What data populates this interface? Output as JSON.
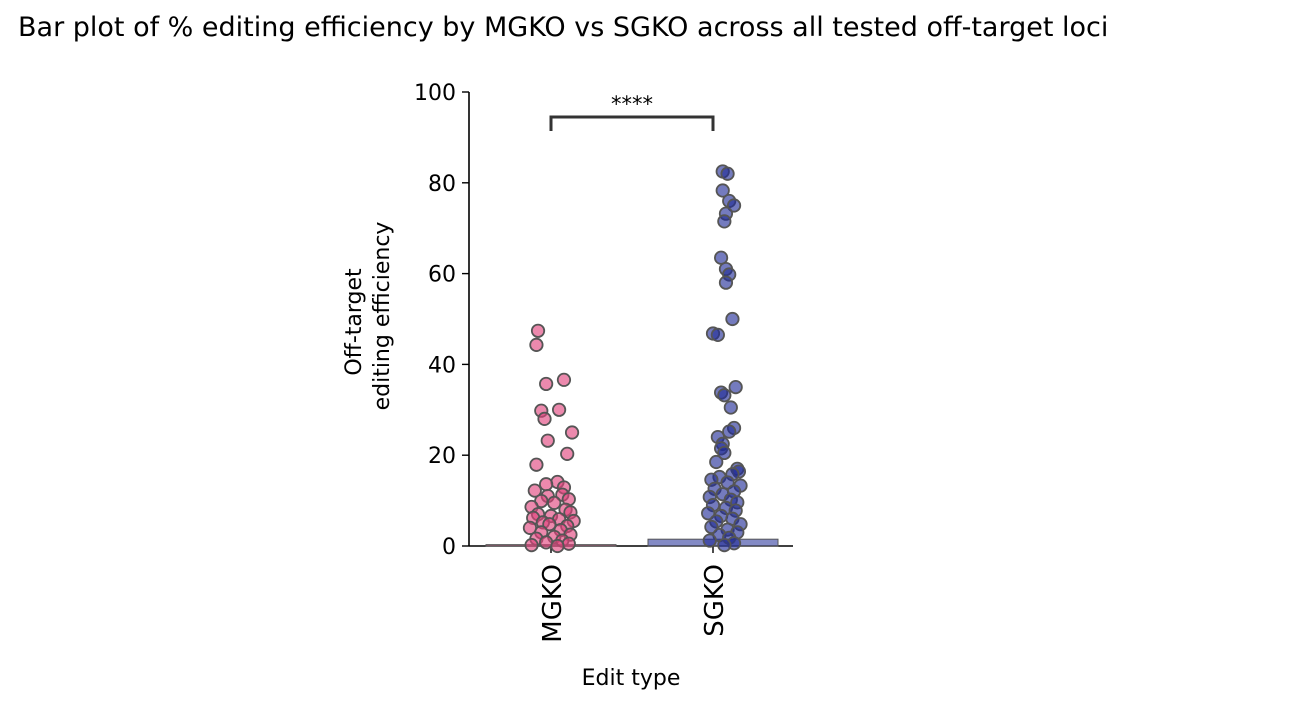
{
  "chart_data": {
    "type": "bar",
    "title": "Bar plot of % editing efficiency by MGKO vs SGKO across all tested off-target loci",
    "xlabel": "Edit type",
    "ylabel_lines": [
      "Off-target",
      "editing efficiency"
    ],
    "ylim": [
      0,
      100
    ],
    "yticks": [
      0,
      20,
      40,
      60,
      80,
      100
    ],
    "categories": [
      "MGKO",
      "SGKO"
    ],
    "bar_values": [
      0.3,
      1.5
    ],
    "colors": {
      "MGKO": "#e0407a",
      "SGKO": "#1e2a96",
      "marker_edge": "#555555",
      "bracket": "#333333"
    },
    "significance": {
      "label": "****",
      "between": [
        "MGKO",
        "SGKO"
      ],
      "y": 94.5
    },
    "points": [
      {
        "category": "MGKO",
        "values": [
          47.4,
          44.3,
          36.6,
          35.7,
          30.0,
          29.8,
          28.0,
          25.0,
          23.2,
          20.3,
          17.9,
          14.1,
          13.6,
          12.9,
          12.2,
          11.3,
          11.0,
          10.3,
          9.9,
          9.5,
          8.6,
          8.0,
          7.4,
          7.0,
          6.6,
          6.2,
          5.9,
          5.5,
          5.2,
          4.8,
          4.4,
          4.0,
          3.5,
          3.0,
          2.5,
          2.0,
          1.6,
          1.2,
          0.8,
          0.5,
          0.2,
          0.0
        ],
        "jitter": [
          -0.08,
          -0.09,
          0.08,
          -0.03,
          0.05,
          -0.06,
          -0.04,
          0.13,
          -0.02,
          0.1,
          -0.09,
          0.04,
          -0.03,
          0.08,
          -0.1,
          0.07,
          -0.02,
          0.11,
          -0.06,
          0.02,
          -0.12,
          0.09,
          0.12,
          -0.08,
          0.0,
          -0.11,
          0.05,
          0.14,
          -0.05,
          -0.01,
          0.1,
          -0.13,
          0.06,
          -0.06,
          0.12,
          0.02,
          -0.09,
          0.07,
          -0.03,
          0.11,
          -0.12,
          0.04
        ]
      },
      {
        "category": "SGKO",
        "values": [
          82.5,
          82.0,
          78.3,
          76.0,
          75.0,
          73.2,
          71.5,
          63.5,
          61.0,
          59.8,
          58.0,
          50.0,
          46.8,
          46.5,
          35.0,
          33.8,
          33.2,
          30.5,
          26.0,
          25.2,
          24.0,
          22.5,
          21.5,
          20.5,
          18.5,
          17.0,
          16.4,
          15.8,
          15.2,
          14.6,
          14.0,
          13.3,
          12.6,
          12.0,
          11.4,
          10.8,
          10.2,
          9.6,
          9.0,
          8.4,
          7.8,
          7.2,
          6.6,
          6.0,
          5.4,
          4.8,
          4.2,
          3.6,
          3.0,
          2.4,
          1.8,
          1.2,
          0.6,
          0.2
        ],
        "jitter": [
          0.06,
          0.09,
          0.06,
          0.1,
          0.13,
          0.08,
          0.07,
          0.05,
          0.08,
          0.1,
          0.08,
          0.12,
          0.0,
          0.03,
          0.14,
          0.05,
          0.07,
          0.11,
          0.13,
          0.1,
          0.03,
          0.06,
          0.05,
          0.07,
          0.02,
          0.15,
          0.16,
          0.12,
          0.04,
          -0.01,
          0.09,
          0.17,
          0.01,
          0.13,
          0.06,
          -0.02,
          0.11,
          0.15,
          0.0,
          0.08,
          0.14,
          -0.03,
          0.05,
          0.12,
          0.02,
          0.17,
          -0.01,
          0.09,
          0.15,
          0.04,
          0.1,
          -0.02,
          0.13,
          0.07
        ]
      }
    ]
  }
}
